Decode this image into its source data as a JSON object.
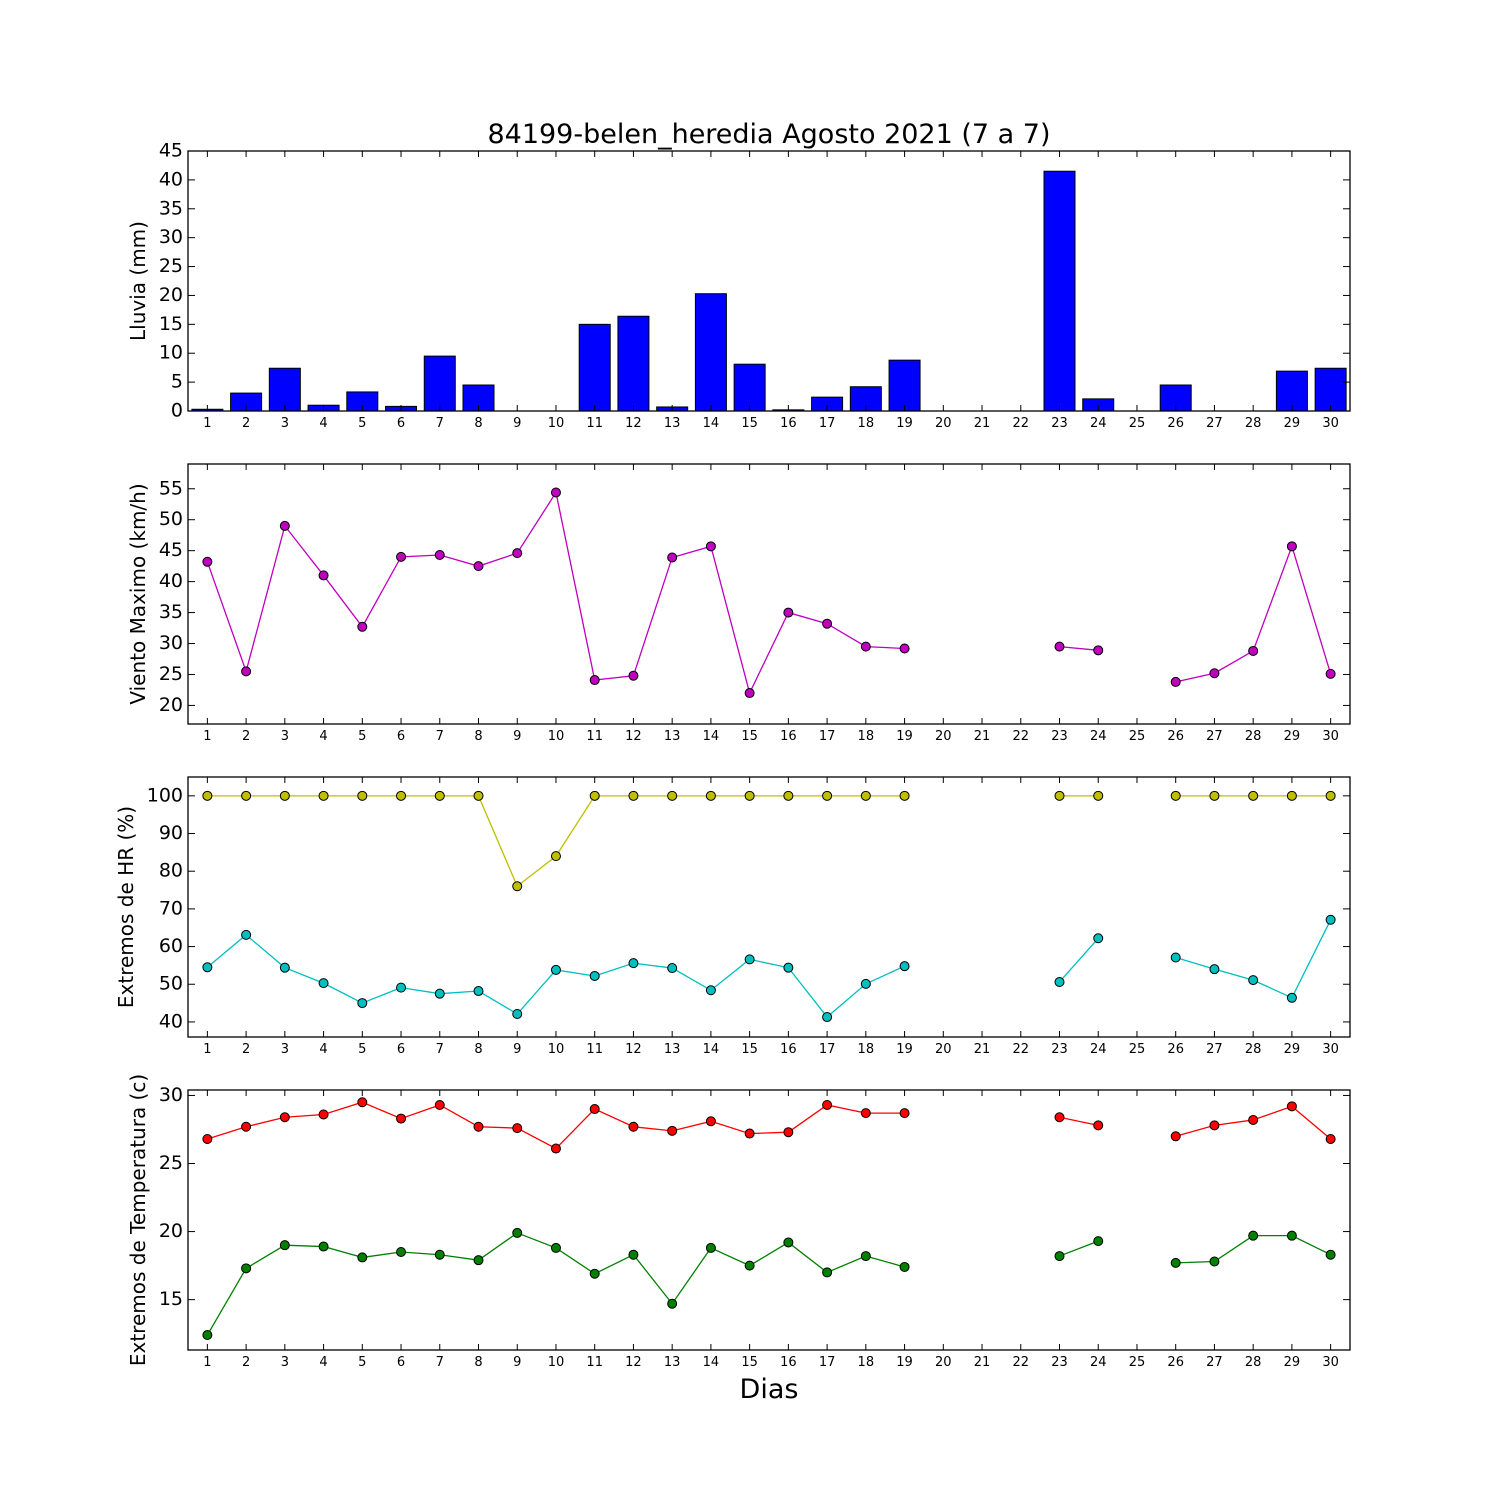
{
  "title": "84199-belen_heredia Agosto 2021  (7 a 7)",
  "xlabel": "Dias",
  "days": [
    1,
    2,
    3,
    4,
    5,
    6,
    7,
    8,
    9,
    10,
    11,
    12,
    13,
    14,
    15,
    16,
    17,
    18,
    19,
    20,
    21,
    22,
    23,
    24,
    25,
    26,
    27,
    28,
    29,
    30
  ],
  "chart_data": [
    {
      "type": "bar",
      "ylabel": "Lluvia (mm)",
      "ylim": [
        0,
        45
      ],
      "yticks": [
        0,
        5,
        10,
        15,
        20,
        25,
        30,
        35,
        40,
        45
      ],
      "series": [
        {
          "color": "#0000ff",
          "values": [
            0.3,
            3.1,
            7.4,
            1.0,
            3.3,
            0.8,
            9.5,
            4.5,
            0,
            0,
            15.0,
            16.4,
            0.7,
            20.3,
            8.1,
            0.2,
            2.4,
            4.2,
            8.8,
            0,
            0,
            0,
            41.5,
            2.1,
            0,
            4.5,
            0,
            0,
            6.9,
            7.4
          ]
        }
      ]
    },
    {
      "type": "line",
      "ylabel": "Viento Maximo (km/h)",
      "ylim": [
        17,
        59
      ],
      "yticks": [
        20,
        25,
        30,
        35,
        40,
        45,
        50,
        55
      ],
      "series": [
        {
          "color": "#bf00bf",
          "values": [
            43.2,
            25.5,
            49.0,
            41.0,
            32.7,
            44.0,
            44.3,
            42.5,
            44.6,
            54.4,
            24.1,
            24.8,
            43.9,
            45.7,
            22.0,
            35.0,
            33.2,
            29.5,
            29.2,
            null,
            null,
            null,
            29.5,
            28.9,
            null,
            23.8,
            25.2,
            28.8,
            45.7,
            25.1
          ]
        }
      ]
    },
    {
      "type": "line",
      "ylabel": "Extremos de HR (%)",
      "ylim": [
        36,
        105
      ],
      "yticks": [
        40,
        50,
        60,
        70,
        80,
        90,
        100
      ],
      "series": [
        {
          "color": "#bfbf00",
          "values": [
            100,
            100,
            100,
            100,
            100,
            100,
            100,
            100,
            76,
            84,
            100,
            100,
            100,
            100,
            100,
            100,
            100,
            100,
            100,
            null,
            null,
            null,
            100,
            100,
            null,
            100,
            100,
            100,
            100,
            100
          ]
        },
        {
          "color": "#00bfbf",
          "values": [
            54.5,
            63.1,
            54.4,
            50.3,
            45.0,
            49.1,
            47.5,
            48.2,
            42.1,
            53.8,
            52.2,
            55.6,
            54.3,
            48.4,
            56.6,
            54.4,
            41.3,
            50.1,
            54.8,
            null,
            null,
            null,
            50.6,
            62.2,
            null,
            57.1,
            54.0,
            51.1,
            46.4,
            67.1
          ]
        }
      ]
    },
    {
      "type": "line",
      "ylabel": "Extremos de Temperatura (c)",
      "ylim": [
        11.3,
        30.4
      ],
      "yticks": [
        15,
        20,
        25,
        30
      ],
      "series": [
        {
          "color": "#ff0000",
          "values": [
            26.8,
            27.7,
            28.4,
            28.6,
            29.5,
            28.3,
            29.3,
            27.7,
            27.6,
            26.1,
            29.0,
            27.7,
            27.4,
            28.1,
            27.2,
            27.3,
            29.3,
            28.7,
            28.7,
            null,
            null,
            null,
            28.4,
            27.8,
            null,
            27.0,
            27.8,
            28.2,
            29.2,
            26.8
          ]
        },
        {
          "color": "#008000",
          "values": [
            12.4,
            17.3,
            19.0,
            18.9,
            18.1,
            18.5,
            18.3,
            17.9,
            19.9,
            18.8,
            16.9,
            18.3,
            14.7,
            18.8,
            17.5,
            19.2,
            17.0,
            18.2,
            17.4,
            null,
            null,
            null,
            18.2,
            19.3,
            null,
            17.7,
            17.8,
            19.7,
            19.7,
            18.3
          ]
        }
      ]
    }
  ]
}
